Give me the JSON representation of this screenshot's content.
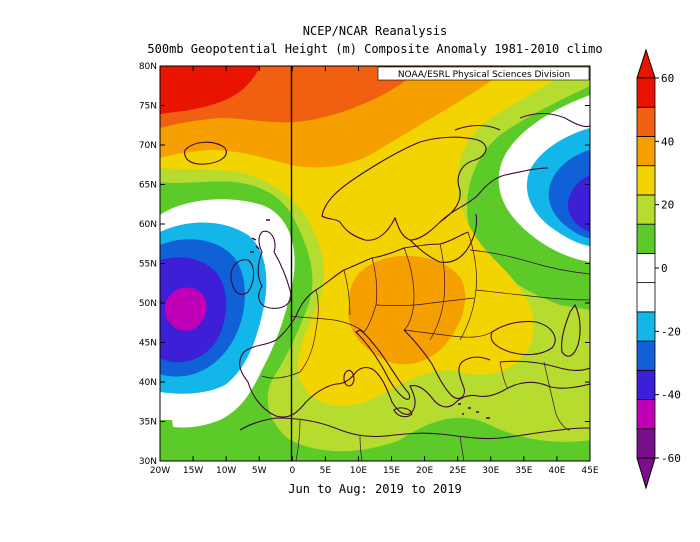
{
  "titles": {
    "line1": "NCEP/NCAR Reanalysis",
    "line2": "500mb Geopotential Height (m) Composite Anomaly 1981-2010 climo",
    "credit": "NOAA/ESRL Physical Sciences Division",
    "period": "Jun to Aug: 2019 to 2019"
  },
  "axes": {
    "lon_labels": [
      "20W",
      "15W",
      "10W",
      "5W",
      "0",
      "5E",
      "10E",
      "15E",
      "20E",
      "25E",
      "30E",
      "35E",
      "40E",
      "45E"
    ],
    "lat_labels": [
      "80N",
      "75N",
      "70N",
      "65N",
      "60N",
      "55N",
      "50N",
      "45N",
      "40N",
      "35N",
      "30N"
    ],
    "lon_range": [
      -20,
      45
    ],
    "lat_range": [
      30,
      80
    ]
  },
  "colorbar": {
    "labels": [
      "60",
      "40",
      "20",
      "0",
      "-20",
      "-40",
      "-60"
    ],
    "range": [
      -60,
      60
    ],
    "colors": [
      "#7a0f8c",
      "#c000b8",
      "#3c1fd6",
      "#1060d8",
      "#12b6e8",
      "#ffffff",
      "#ffffff",
      "#5ccb2a",
      "#b6dc30",
      "#f2d500",
      "#f5a000",
      "#f06010",
      "#e81400"
    ]
  },
  "map_colors": {
    "strong_pos": "#e81400",
    "pos_45": "#f06010",
    "pos_35": "#f5a000",
    "pos_25": "#f2d500",
    "pos_15": "#b6dc30",
    "pos_5": "#5ccb2a",
    "neutral": "#ffffff",
    "neg_15": "#12b6e8",
    "neg_25": "#1060d8",
    "neg_35": "#3c1fd6",
    "neg_45": "#c000b8",
    "coast": "#3a0a3a"
  }
}
